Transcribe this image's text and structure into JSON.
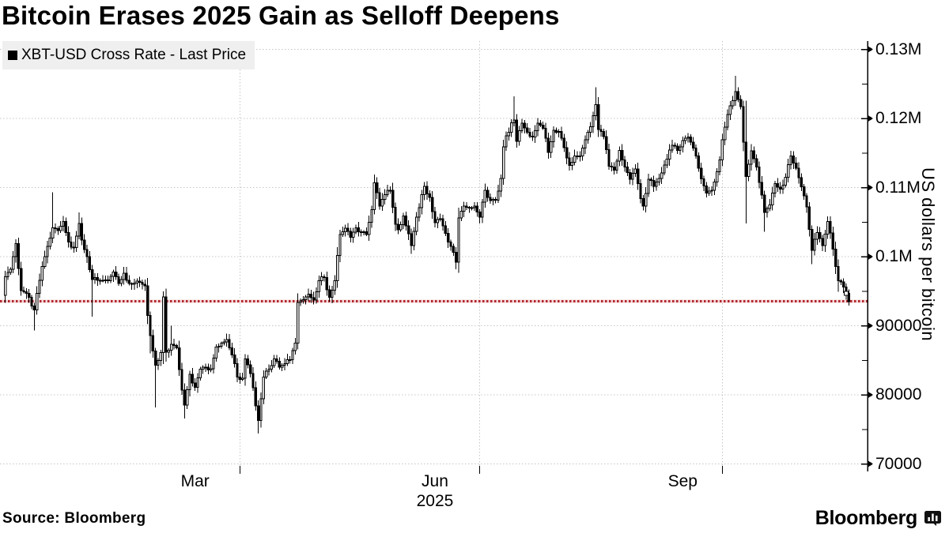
{
  "title": "Bitcoin Erases 2025 Gain as Selloff Deepens",
  "legend": {
    "swatch": "",
    "label": "XBT-USD Cross Rate - Last Price"
  },
  "y_axis": {
    "title": "US dollars per bitcoin",
    "major_ticks": [
      {
        "v": 130000,
        "label": "0.13M"
      },
      {
        "v": 120000,
        "label": "0.12M"
      },
      {
        "v": 110000,
        "label": "0.11M"
      },
      {
        "v": 100000,
        "label": "0.1M"
      },
      {
        "v": 90000,
        "label": "90000"
      },
      {
        "v": 80000,
        "label": "80000"
      },
      {
        "v": 70000,
        "label": "70000"
      }
    ],
    "minor_tick_values": [
      125000,
      115000,
      105000,
      95000,
      85000,
      75000
    ]
  },
  "x_axis": {
    "month_labels": [
      {
        "day": 74,
        "label": "Mar",
        "year": ""
      },
      {
        "day": 165,
        "label": "Jun",
        "year": "2025"
      },
      {
        "day": 259,
        "label": "Sep",
        "year": ""
      }
    ],
    "quarter_grid_days": [
      91,
      182,
      274
    ]
  },
  "reference_line": {
    "value": 93570,
    "color": "#b3282e",
    "band_color": "#f3d8da"
  },
  "footer": {
    "source": "Source: Bloomberg",
    "brand": "Bloomberg"
  },
  "colors": {
    "bar": "#000000",
    "grid": "#c6c6c6",
    "axis": "#000000",
    "legend_bg": "#efefef"
  },
  "chart_data": {
    "type": "candlestick",
    "series": "XBT-USD Cross Rate - Last Price",
    "y_unit": "US dollars per bitcoin",
    "x_unit": "day of 2025 (1 = Jan 1)",
    "y_range": [
      70000,
      130000
    ],
    "x_range_days": [
      0,
      330
    ],
    "last_price": 93500,
    "anchors_format": [
      "day",
      "close",
      "high",
      "low"
    ],
    "anchors": [
      [
        1,
        94400,
        null,
        null
      ],
      [
        2,
        97100,
        null,
        null
      ],
      [
        4,
        98200,
        null,
        null
      ],
      [
        6,
        101900,
        102500,
        null
      ],
      [
        8,
        95100,
        null,
        null
      ],
      [
        10,
        94700,
        null,
        null
      ],
      [
        13,
        92300,
        null,
        89300
      ],
      [
        15,
        96600,
        null,
        null
      ],
      [
        17,
        100000,
        null,
        null
      ],
      [
        20,
        104200,
        109300,
        null
      ],
      [
        22,
        103800,
        null,
        null
      ],
      [
        24,
        105100,
        null,
        null
      ],
      [
        26,
        102100,
        null,
        null
      ],
      [
        28,
        101300,
        null,
        null
      ],
      [
        30,
        104800,
        106400,
        null
      ],
      [
        31,
        102400,
        null,
        null
      ],
      [
        33,
        100000,
        null,
        null
      ],
      [
        35,
        96700,
        null,
        91300
      ],
      [
        37,
        96600,
        null,
        null
      ],
      [
        39,
        96600,
        null,
        null
      ],
      [
        41,
        96500,
        null,
        null
      ],
      [
        43,
        97800,
        null,
        null
      ],
      [
        45,
        96100,
        null,
        null
      ],
      [
        47,
        97600,
        null,
        null
      ],
      [
        49,
        96100,
        null,
        null
      ],
      [
        51,
        96200,
        null,
        null
      ],
      [
        53,
        96300,
        null,
        null
      ],
      [
        55,
        95800,
        null,
        null
      ],
      [
        56,
        91500,
        null,
        null
      ],
      [
        57,
        88600,
        null,
        86000
      ],
      [
        59,
        84300,
        null,
        78200
      ],
      [
        61,
        86100,
        null,
        null
      ],
      [
        62,
        94200,
        95000,
        null
      ],
      [
        63,
        86200,
        null,
        null
      ],
      [
        65,
        87300,
        90000,
        null
      ],
      [
        67,
        86800,
        null,
        null
      ],
      [
        69,
        80700,
        null,
        null
      ],
      [
        70,
        78500,
        null,
        76600
      ],
      [
        72,
        83000,
        null,
        null
      ],
      [
        74,
        81100,
        null,
        null
      ],
      [
        76,
        83700,
        null,
        null
      ],
      [
        78,
        84000,
        null,
        null
      ],
      [
        80,
        83800,
        null,
        null
      ],
      [
        82,
        86900,
        null,
        null
      ],
      [
        84,
        87500,
        null,
        null
      ],
      [
        86,
        88000,
        null,
        null
      ],
      [
        88,
        85800,
        null,
        null
      ],
      [
        90,
        82600,
        null,
        null
      ],
      [
        92,
        82400,
        null,
        null
      ],
      [
        93,
        85200,
        null,
        null
      ],
      [
        95,
        83100,
        null,
        null
      ],
      [
        97,
        78400,
        null,
        null
      ],
      [
        98,
        76300,
        null,
        74400
      ],
      [
        100,
        82600,
        null,
        null
      ],
      [
        102,
        83700,
        null,
        null
      ],
      [
        104,
        85200,
        null,
        null
      ],
      [
        106,
        84000,
        null,
        null
      ],
      [
        108,
        84500,
        null,
        null
      ],
      [
        110,
        85100,
        null,
        null
      ],
      [
        112,
        87500,
        null,
        null
      ],
      [
        113,
        93400,
        null,
        null
      ],
      [
        115,
        93800,
        null,
        null
      ],
      [
        117,
        94600,
        null,
        null
      ],
      [
        119,
        93700,
        null,
        null
      ],
      [
        121,
        96500,
        null,
        null
      ],
      [
        123,
        97000,
        null,
        null
      ],
      [
        125,
        94100,
        null,
        null
      ],
      [
        127,
        96500,
        null,
        null
      ],
      [
        129,
        103200,
        null,
        null
      ],
      [
        131,
        104100,
        null,
        null
      ],
      [
        133,
        102800,
        null,
        null
      ],
      [
        135,
        104200,
        null,
        null
      ],
      [
        137,
        103500,
        null,
        null
      ],
      [
        139,
        103200,
        null,
        null
      ],
      [
        141,
        106800,
        null,
        null
      ],
      [
        142,
        110700,
        111900,
        null
      ],
      [
        144,
        107300,
        null,
        null
      ],
      [
        146,
        109000,
        null,
        null
      ],
      [
        148,
        109600,
        null,
        null
      ],
      [
        150,
        104700,
        null,
        null
      ],
      [
        151,
        103900,
        null,
        null
      ],
      [
        153,
        105900,
        null,
        null
      ],
      [
        156,
        101600,
        null,
        100400
      ],
      [
        158,
        105700,
        null,
        null
      ],
      [
        161,
        110200,
        null,
        null
      ],
      [
        163,
        108600,
        null,
        null
      ],
      [
        165,
        104900,
        null,
        null
      ],
      [
        167,
        105500,
        null,
        null
      ],
      [
        169,
        103400,
        null,
        null
      ],
      [
        171,
        101500,
        null,
        null
      ],
      [
        173,
        99200,
        null,
        98200
      ],
      [
        174,
        105600,
        null,
        null
      ],
      [
        176,
        107300,
        null,
        null
      ],
      [
        178,
        107100,
        null,
        null
      ],
      [
        180,
        107300,
        null,
        null
      ],
      [
        182,
        105700,
        null,
        null
      ],
      [
        184,
        109600,
        null,
        null
      ],
      [
        186,
        108100,
        null,
        null
      ],
      [
        188,
        108200,
        null,
        null
      ],
      [
        190,
        111300,
        null,
        null
      ],
      [
        191,
        115900,
        null,
        null
      ],
      [
        192,
        117500,
        null,
        null
      ],
      [
        195,
        119800,
        123200,
        null
      ],
      [
        196,
        116700,
        null,
        null
      ],
      [
        198,
        119300,
        null,
        null
      ],
      [
        200,
        118000,
        null,
        null
      ],
      [
        202,
        117300,
        null,
        null
      ],
      [
        204,
        119300,
        null,
        null
      ],
      [
        206,
        118600,
        null,
        null
      ],
      [
        208,
        115100,
        null,
        null
      ],
      [
        210,
        118300,
        null,
        null
      ],
      [
        212,
        118100,
        null,
        null
      ],
      [
        214,
        115800,
        null,
        null
      ],
      [
        216,
        113200,
        null,
        null
      ],
      [
        218,
        114600,
        null,
        null
      ],
      [
        220,
        114600,
        null,
        null
      ],
      [
        222,
        116900,
        null,
        null
      ],
      [
        224,
        118800,
        null,
        null
      ],
      [
        226,
        122000,
        124500,
        null
      ],
      [
        227,
        118400,
        null,
        null
      ],
      [
        229,
        117400,
        null,
        null
      ],
      [
        231,
        113100,
        null,
        null
      ],
      [
        233,
        112500,
        null,
        null
      ],
      [
        235,
        115400,
        null,
        null
      ],
      [
        237,
        113000,
        null,
        null
      ],
      [
        239,
        111200,
        null,
        null
      ],
      [
        241,
        112700,
        null,
        null
      ],
      [
        243,
        108400,
        null,
        null
      ],
      [
        244,
        107300,
        null,
        null
      ],
      [
        246,
        111200,
        null,
        null
      ],
      [
        248,
        110200,
        null,
        null
      ],
      [
        250,
        111300,
        null,
        null
      ],
      [
        253,
        114100,
        null,
        null
      ],
      [
        255,
        116100,
        null,
        null
      ],
      [
        257,
        115400,
        null,
        null
      ],
      [
        259,
        116800,
        null,
        null
      ],
      [
        261,
        117300,
        117900,
        null
      ],
      [
        263,
        115700,
        null,
        null
      ],
      [
        265,
        112800,
        null,
        null
      ],
      [
        268,
        109200,
        null,
        108600
      ],
      [
        270,
        109600,
        null,
        null
      ],
      [
        272,
        112300,
        null,
        null
      ],
      [
        273,
        114000,
        null,
        null
      ],
      [
        274,
        116900,
        null,
        null
      ],
      [
        276,
        120600,
        null,
        null
      ],
      [
        278,
        122600,
        null,
        null
      ],
      [
        279,
        123900,
        126200,
        null
      ],
      [
        281,
        121700,
        null,
        null
      ],
      [
        283,
        111600,
        122600,
        104800
      ],
      [
        285,
        115300,
        null,
        null
      ],
      [
        287,
        113000,
        null,
        null
      ],
      [
        289,
        108900,
        null,
        null
      ],
      [
        290,
        106400,
        null,
        103600
      ],
      [
        292,
        107500,
        null,
        null
      ],
      [
        294,
        110600,
        null,
        null
      ],
      [
        296,
        109800,
        null,
        null
      ],
      [
        298,
        111500,
        null,
        null
      ],
      [
        300,
        114600,
        null,
        null
      ],
      [
        302,
        112800,
        null,
        null
      ],
      [
        304,
        110100,
        null,
        null
      ],
      [
        306,
        107200,
        null,
        null
      ],
      [
        308,
        100900,
        null,
        98900
      ],
      [
        310,
        103500,
        null,
        null
      ],
      [
        312,
        101600,
        null,
        null
      ],
      [
        314,
        105100,
        null,
        null
      ],
      [
        316,
        101100,
        null,
        null
      ],
      [
        318,
        96500,
        null,
        94900
      ],
      [
        320,
        95600,
        null,
        null
      ],
      [
        321,
        94700,
        null,
        null
      ],
      [
        322,
        93500,
        null,
        92900
      ]
    ]
  }
}
